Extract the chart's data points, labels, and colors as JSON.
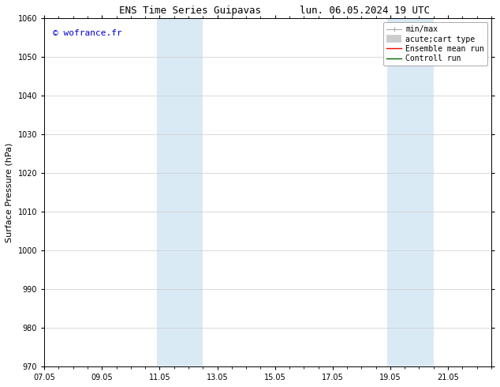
{
  "title_left": "ENS Time Series Guipavas",
  "title_right": "lun. 06.05.2024 19 UTC",
  "ylabel": "Surface Pressure (hPa)",
  "ylim": [
    970,
    1060
  ],
  "yticks": [
    970,
    980,
    990,
    1000,
    1010,
    1020,
    1030,
    1040,
    1050,
    1060
  ],
  "xticks_labels": [
    "07.05",
    "09.05",
    "11.05",
    "13.05",
    "15.05",
    "17.05",
    "19.05",
    "21.05"
  ],
  "xticks_pos": [
    0,
    2,
    4,
    6,
    8,
    10,
    12,
    14
  ],
  "xlim": [
    0,
    15.5
  ],
  "watermark": "© wofrance.fr",
  "watermark_color": "#0000cc",
  "bg_color": "#ffffff",
  "shaded_regions": [
    {
      "x_start": 3.9,
      "x_end": 5.5,
      "color": "#daeaf5"
    },
    {
      "x_start": 11.9,
      "x_end": 13.5,
      "color": "#daeaf5"
    }
  ],
  "legend_labels": [
    "min/max",
    "acute;cart type",
    "Ensemble mean run",
    "Controll run"
  ],
  "grid_color": "#cccccc",
  "spine_color": "#000000",
  "title_fontsize": 9,
  "label_fontsize": 8,
  "tick_fontsize": 7,
  "legend_fontsize": 7
}
